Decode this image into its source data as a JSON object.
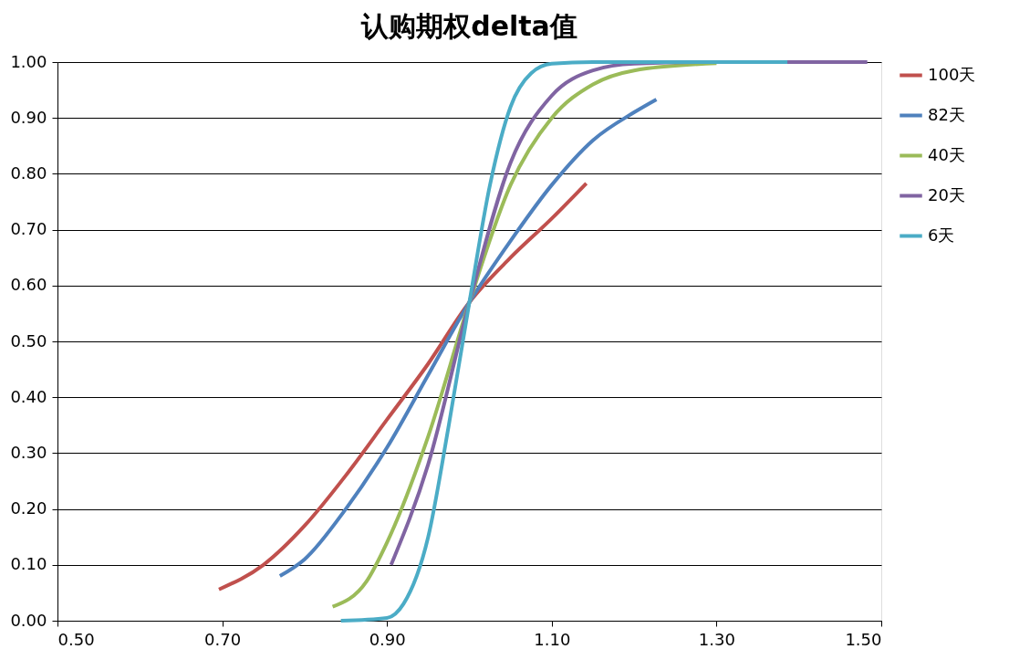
{
  "chart_data": {
    "type": "line",
    "title": "认购期权delta值",
    "xlim": [
      0.5,
      1.5
    ],
    "ylim": [
      0,
      1
    ],
    "xticks": [
      {
        "value": 0.5,
        "label": "0.50"
      },
      {
        "value": 0.7,
        "label": "0.70"
      },
      {
        "value": 0.9,
        "label": "0.90"
      },
      {
        "value": 1.1,
        "label": "1.10"
      },
      {
        "value": 1.3,
        "label": "1.30"
      },
      {
        "value": 1.5,
        "label": "1.50"
      }
    ],
    "yticks": [
      {
        "value": 0,
        "label": "0.00"
      },
      {
        "value": 0.1,
        "label": "0.10"
      },
      {
        "value": 0.2,
        "label": "0.20"
      },
      {
        "value": 0.3,
        "label": "0.30"
      },
      {
        "value": 0.4,
        "label": "0.40"
      },
      {
        "value": 0.5,
        "label": "0.50"
      },
      {
        "value": 0.6,
        "label": "0.60"
      },
      {
        "value": 0.7,
        "label": "0.70"
      },
      {
        "value": 0.8,
        "label": "0.80"
      },
      {
        "value": 0.9,
        "label": "0.90"
      },
      {
        "value": 1,
        "label": "1.00"
      }
    ],
    "grid": "y",
    "legend": "right",
    "marker": "none",
    "line_style": "solid",
    "series": [
      {
        "name": "100天",
        "color": "#c0504d",
        "x": [
          0.696,
          0.75,
          0.8,
          0.85,
          0.9,
          0.95,
          1.0,
          1.05,
          1.1,
          1.142
        ],
        "values": [
          0.056,
          0.1,
          0.17,
          0.26,
          0.36,
          0.46,
          0.57,
          0.65,
          0.72,
          0.783
        ]
      },
      {
        "name": "82天",
        "color": "#4f81bd",
        "x": [
          0.77,
          0.8,
          0.85,
          0.9,
          0.95,
          1.0,
          1.05,
          1.1,
          1.15,
          1.2,
          1.227
        ],
        "values": [
          0.08,
          0.11,
          0.2,
          0.31,
          0.44,
          0.57,
          0.68,
          0.78,
          0.86,
          0.91,
          0.933
        ]
      },
      {
        "name": "40天",
        "color": "#9bbb59",
        "x": [
          0.834,
          0.875,
          0.9,
          0.95,
          1.0,
          1.05,
          1.1,
          1.15,
          1.2,
          1.3
        ],
        "values": [
          0.025,
          0.07,
          0.14,
          0.33,
          0.57,
          0.78,
          0.9,
          0.96,
          0.985,
          0.998
        ]
      },
      {
        "name": "20天",
        "color": "#8064a2",
        "x": [
          0.905,
          0.95,
          1.0,
          1.05,
          1.1,
          1.15,
          1.2,
          1.3,
          1.483
        ],
        "values": [
          0.1,
          0.28,
          0.57,
          0.82,
          0.94,
          0.985,
          0.997,
          1.0,
          1.0
        ]
      },
      {
        "name": "6天",
        "color": "#4bacc6",
        "x": [
          0.844,
          0.9,
          0.92,
          0.95,
          0.975,
          1.0,
          1.025,
          1.05,
          1.075,
          1.1,
          1.15,
          1.386
        ],
        "values": [
          0.0,
          0.005,
          0.03,
          0.15,
          0.35,
          0.57,
          0.78,
          0.92,
          0.98,
          0.997,
          1.0,
          1.0
        ]
      }
    ]
  }
}
